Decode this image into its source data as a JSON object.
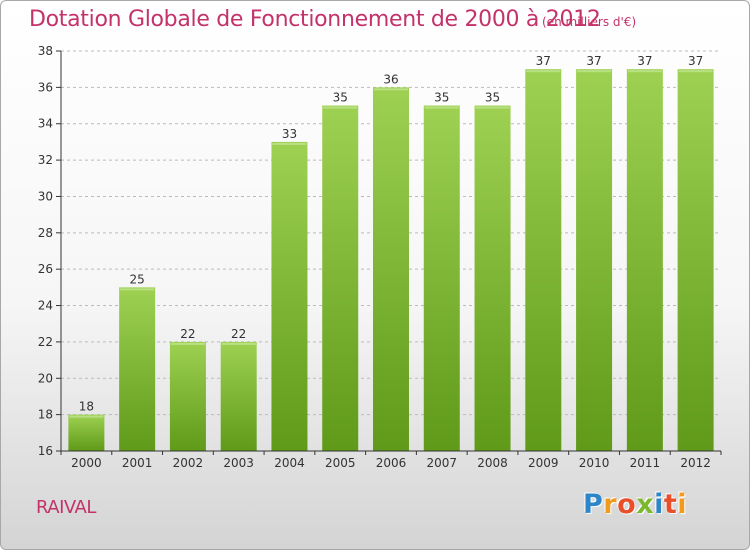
{
  "header": {
    "title": "Dotation Globale de Fonctionnement de 2000 à 2012",
    "unit": "(en milliers d'€)"
  },
  "footer": {
    "place": "RAIVAL",
    "logo": "Proxiti"
  },
  "colors": {
    "title": "#c4326a",
    "bar_top": "#9ed152",
    "bar_bottom": "#5f9a18",
    "axis": "#333333",
    "gridline": "#bbbbbb"
  },
  "chart_data": {
    "type": "bar",
    "title": "Dotation Globale de Fonctionnement de 2000 à 2012",
    "xlabel": "",
    "ylabel": "",
    "categories": [
      "2000",
      "2001",
      "2002",
      "2003",
      "2004",
      "2005",
      "2006",
      "2007",
      "2008",
      "2009",
      "2010",
      "2011",
      "2012"
    ],
    "values": [
      18,
      25,
      22,
      22,
      33,
      35,
      36,
      35,
      35,
      37,
      37,
      37,
      37
    ],
    "ylim": [
      16,
      38
    ],
    "yticks": [
      16,
      18,
      20,
      22,
      24,
      26,
      28,
      30,
      32,
      34,
      36,
      38
    ],
    "grid": "horizontal dashed",
    "data_labels": true
  }
}
